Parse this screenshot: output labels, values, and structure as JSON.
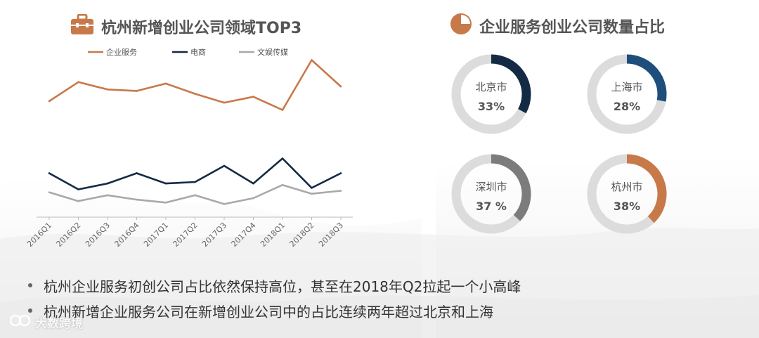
{
  "left_title": "杭州新增创业公司领域TOP3",
  "right_title": "企业服务创业公司数量占比",
  "colors": {
    "title_icon": "#c8794a",
    "qiye": "#c8794a",
    "dianshang": "#142a44",
    "wenyu": "#a9a9a9",
    "ring_bg": "#dcdcdc"
  },
  "chart_data": [
    {
      "type": "line",
      "title": "杭州新增创业公司领域TOP3",
      "categories": [
        "2016Q1",
        "2016Q2",
        "2016Q3",
        "2016Q4",
        "2017Q1",
        "2017Q2",
        "2017Q3",
        "2017Q4",
        "2018Q1",
        "2018Q2",
        "2018Q3"
      ],
      "series": [
        {
          "name": "企业服务",
          "color": "#c8794a",
          "values": [
            42,
            55,
            50,
            49,
            54,
            47,
            41,
            45,
            36,
            70,
            52
          ]
        },
        {
          "name": "电商",
          "color": "#142a44",
          "values": [
            -7,
            -18,
            -14,
            -7,
            -14,
            -13,
            -2,
            -14,
            3,
            -17,
            -7
          ]
        },
        {
          "name": "文娱传媒",
          "color": "#a9a9a9",
          "values": [
            -20,
            -26,
            -22,
            -25,
            -27,
            -22,
            -28,
            -24,
            -15,
            -21,
            -19
          ]
        }
      ],
      "legend": "top",
      "grid": false
    },
    {
      "type": "pie",
      "title": "企业服务创业公司数量占比",
      "donuts": [
        {
          "label": "北京市",
          "display": "33%",
          "value": 33,
          "color": "#142a44"
        },
        {
          "label": "上海市",
          "display": "28%",
          "value": 28,
          "color": "#1d4e7c"
        },
        {
          "label": "深圳市",
          "display": "37 %",
          "value": 37,
          "color": "#7c7c7c"
        },
        {
          "label": "杭州市",
          "display": "38%",
          "value": 38,
          "color": "#c8794a"
        }
      ]
    }
  ],
  "bullets": [
    "杭州企业服务初创公司占比依然保持高位，甚至在2018年Q2拉起一个小高峰",
    "杭州新增企业服务公司在新增创业公司中的占比连续两年超过北京和上海"
  ],
  "watermark": "大数跨境"
}
